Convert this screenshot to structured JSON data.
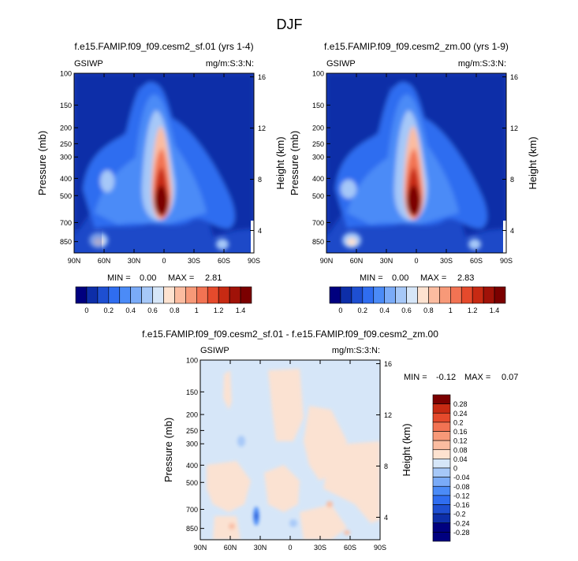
{
  "suptitle": "DJF",
  "colors": {
    "top_scale": [
      "#00007f",
      "#0d2ea8",
      "#1e4fd1",
      "#2f6df0",
      "#4b8bf7",
      "#7aabf8",
      "#a6c8f8",
      "#d6e6f8",
      "#fde2d0",
      "#fbbca0",
      "#f79978",
      "#f27353",
      "#e54a2c",
      "#c72a13",
      "#a01208",
      "#7b0000"
    ],
    "diff_scale": [
      "#00007f",
      "#0d2ea8",
      "#1e4fd1",
      "#2f6df0",
      "#4b8bf7",
      "#7aabf8",
      "#a6c8f8",
      "#d6e6f8",
      "#fde2d0",
      "#fbbca0",
      "#f79978",
      "#f27353",
      "#e54a2c",
      "#c72a13",
      "#7b0000"
    ]
  },
  "chart_data": [
    {
      "type": "heatmap",
      "title": "f.e15.FAMIP.f09_f09.cesm2_sf.01 (yrs 1-4)",
      "left_label": "GSIWP",
      "right_label": "mg/m:S:3:N:",
      "ylabel": "Pressure (mb)",
      "ylabel_right": "Height (km)",
      "x_ticks": [
        "90N",
        "60N",
        "30N",
        "0",
        "30S",
        "60S",
        "90S"
      ],
      "y_ticks": [
        "100",
        "150",
        "200",
        "250",
        "300",
        "400",
        "500",
        "700",
        "850"
      ],
      "height_ticks": [
        "16",
        "12",
        "8",
        "4"
      ],
      "min_label": "MIN =",
      "min_value": "0.00",
      "max_label": "MAX =",
      "max_value": "2.81",
      "colorbar_labels": [
        "0",
        "0.2",
        "0.4",
        "0.6",
        "0.8",
        "1",
        "1.2",
        "1.4"
      ]
    },
    {
      "type": "heatmap",
      "title": "f.e15.FAMIP.f09_f09.cesm2_zm.00 (yrs 1-9)",
      "left_label": "GSIWP",
      "right_label": "mg/m:S:3:N:",
      "ylabel": "Pressure (mb)",
      "ylabel_right": "Height (km)",
      "x_ticks": [
        "90N",
        "60N",
        "30N",
        "0",
        "30S",
        "60S",
        "90S"
      ],
      "y_ticks": [
        "100",
        "150",
        "200",
        "250",
        "300",
        "400",
        "500",
        "700",
        "850"
      ],
      "height_ticks": [
        "16",
        "12",
        "8",
        "4"
      ],
      "min_label": "MIN =",
      "min_value": "0.00",
      "max_label": "MAX =",
      "max_value": "2.83",
      "colorbar_labels": [
        "0",
        "0.2",
        "0.4",
        "0.6",
        "0.8",
        "1",
        "1.2",
        "1.4"
      ]
    },
    {
      "type": "heatmap",
      "title": "f.e15.FAMIP.f09_f09.cesm2_sf.01 - f.e15.FAMIP.f09_f09.cesm2_zm.00",
      "left_label": "GSIWP",
      "right_label": "mg/m:S:3:N:",
      "ylabel": "Pressure (mb)",
      "ylabel_right": "Height (km)",
      "x_ticks": [
        "90N",
        "60N",
        "30N",
        "0",
        "30S",
        "60S",
        "90S"
      ],
      "y_ticks": [
        "100",
        "150",
        "200",
        "250",
        "300",
        "400",
        "500",
        "700",
        "850"
      ],
      "height_ticks": [
        "16",
        "12",
        "8",
        "4"
      ],
      "min_label": "MIN =",
      "min_value": "-0.12",
      "max_label": "MAX =",
      "max_value": "0.07",
      "colorbar_labels": [
        "0.28",
        "0.24",
        "0.2",
        "0.16",
        "0.12",
        "0.08",
        "0.04",
        "0",
        "-0.04",
        "-0.08",
        "-0.12",
        "-0.16",
        "-0.2",
        "-0.24",
        "-0.28"
      ]
    }
  ]
}
